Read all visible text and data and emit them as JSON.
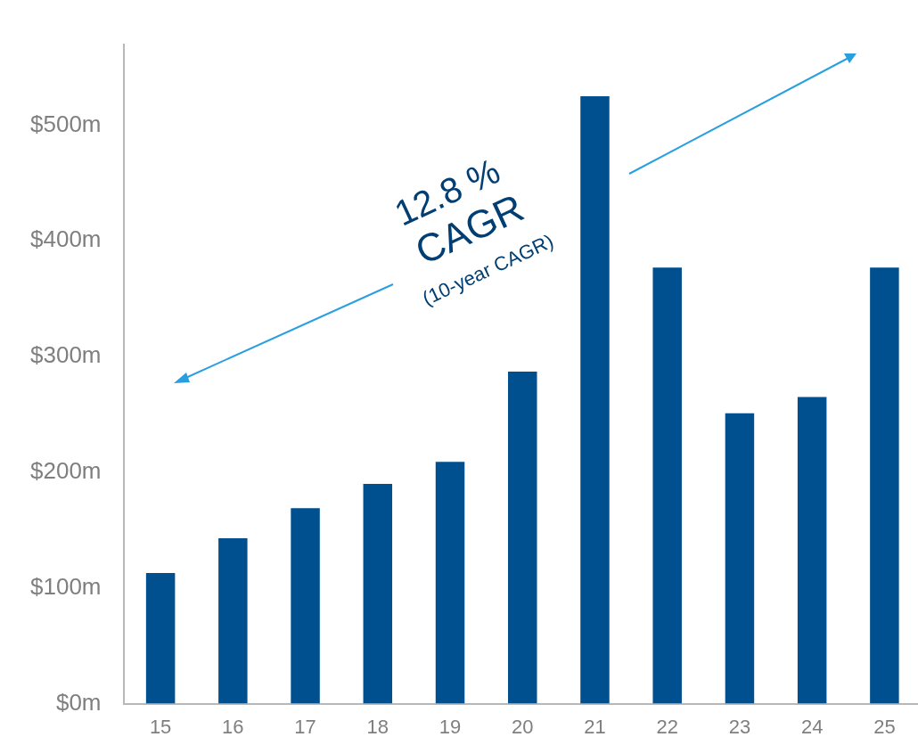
{
  "chart_data": {
    "type": "bar",
    "categories": [
      "15",
      "16",
      "17",
      "18",
      "19",
      "20",
      "21",
      "22",
      "23",
      "24",
      "25"
    ],
    "values": [
      113,
      143,
      169,
      190,
      209,
      287,
      525,
      377,
      251,
      265,
      377
    ],
    "color": "#00508f",
    "ylim": [
      0,
      570
    ],
    "yticks": [
      {
        "value": 0,
        "label": "$0m"
      },
      {
        "value": 100,
        "label": "$100m"
      },
      {
        "value": 200,
        "label": "$200m"
      },
      {
        "value": 300,
        "label": "$300m"
      },
      {
        "value": 400,
        "label": "$400m"
      },
      {
        "value": 500,
        "label": "$500m"
      }
    ],
    "grid": false,
    "legend": false,
    "annotations": [
      "12.8 %",
      "CAGR",
      "(10-year CAGR)"
    ]
  }
}
